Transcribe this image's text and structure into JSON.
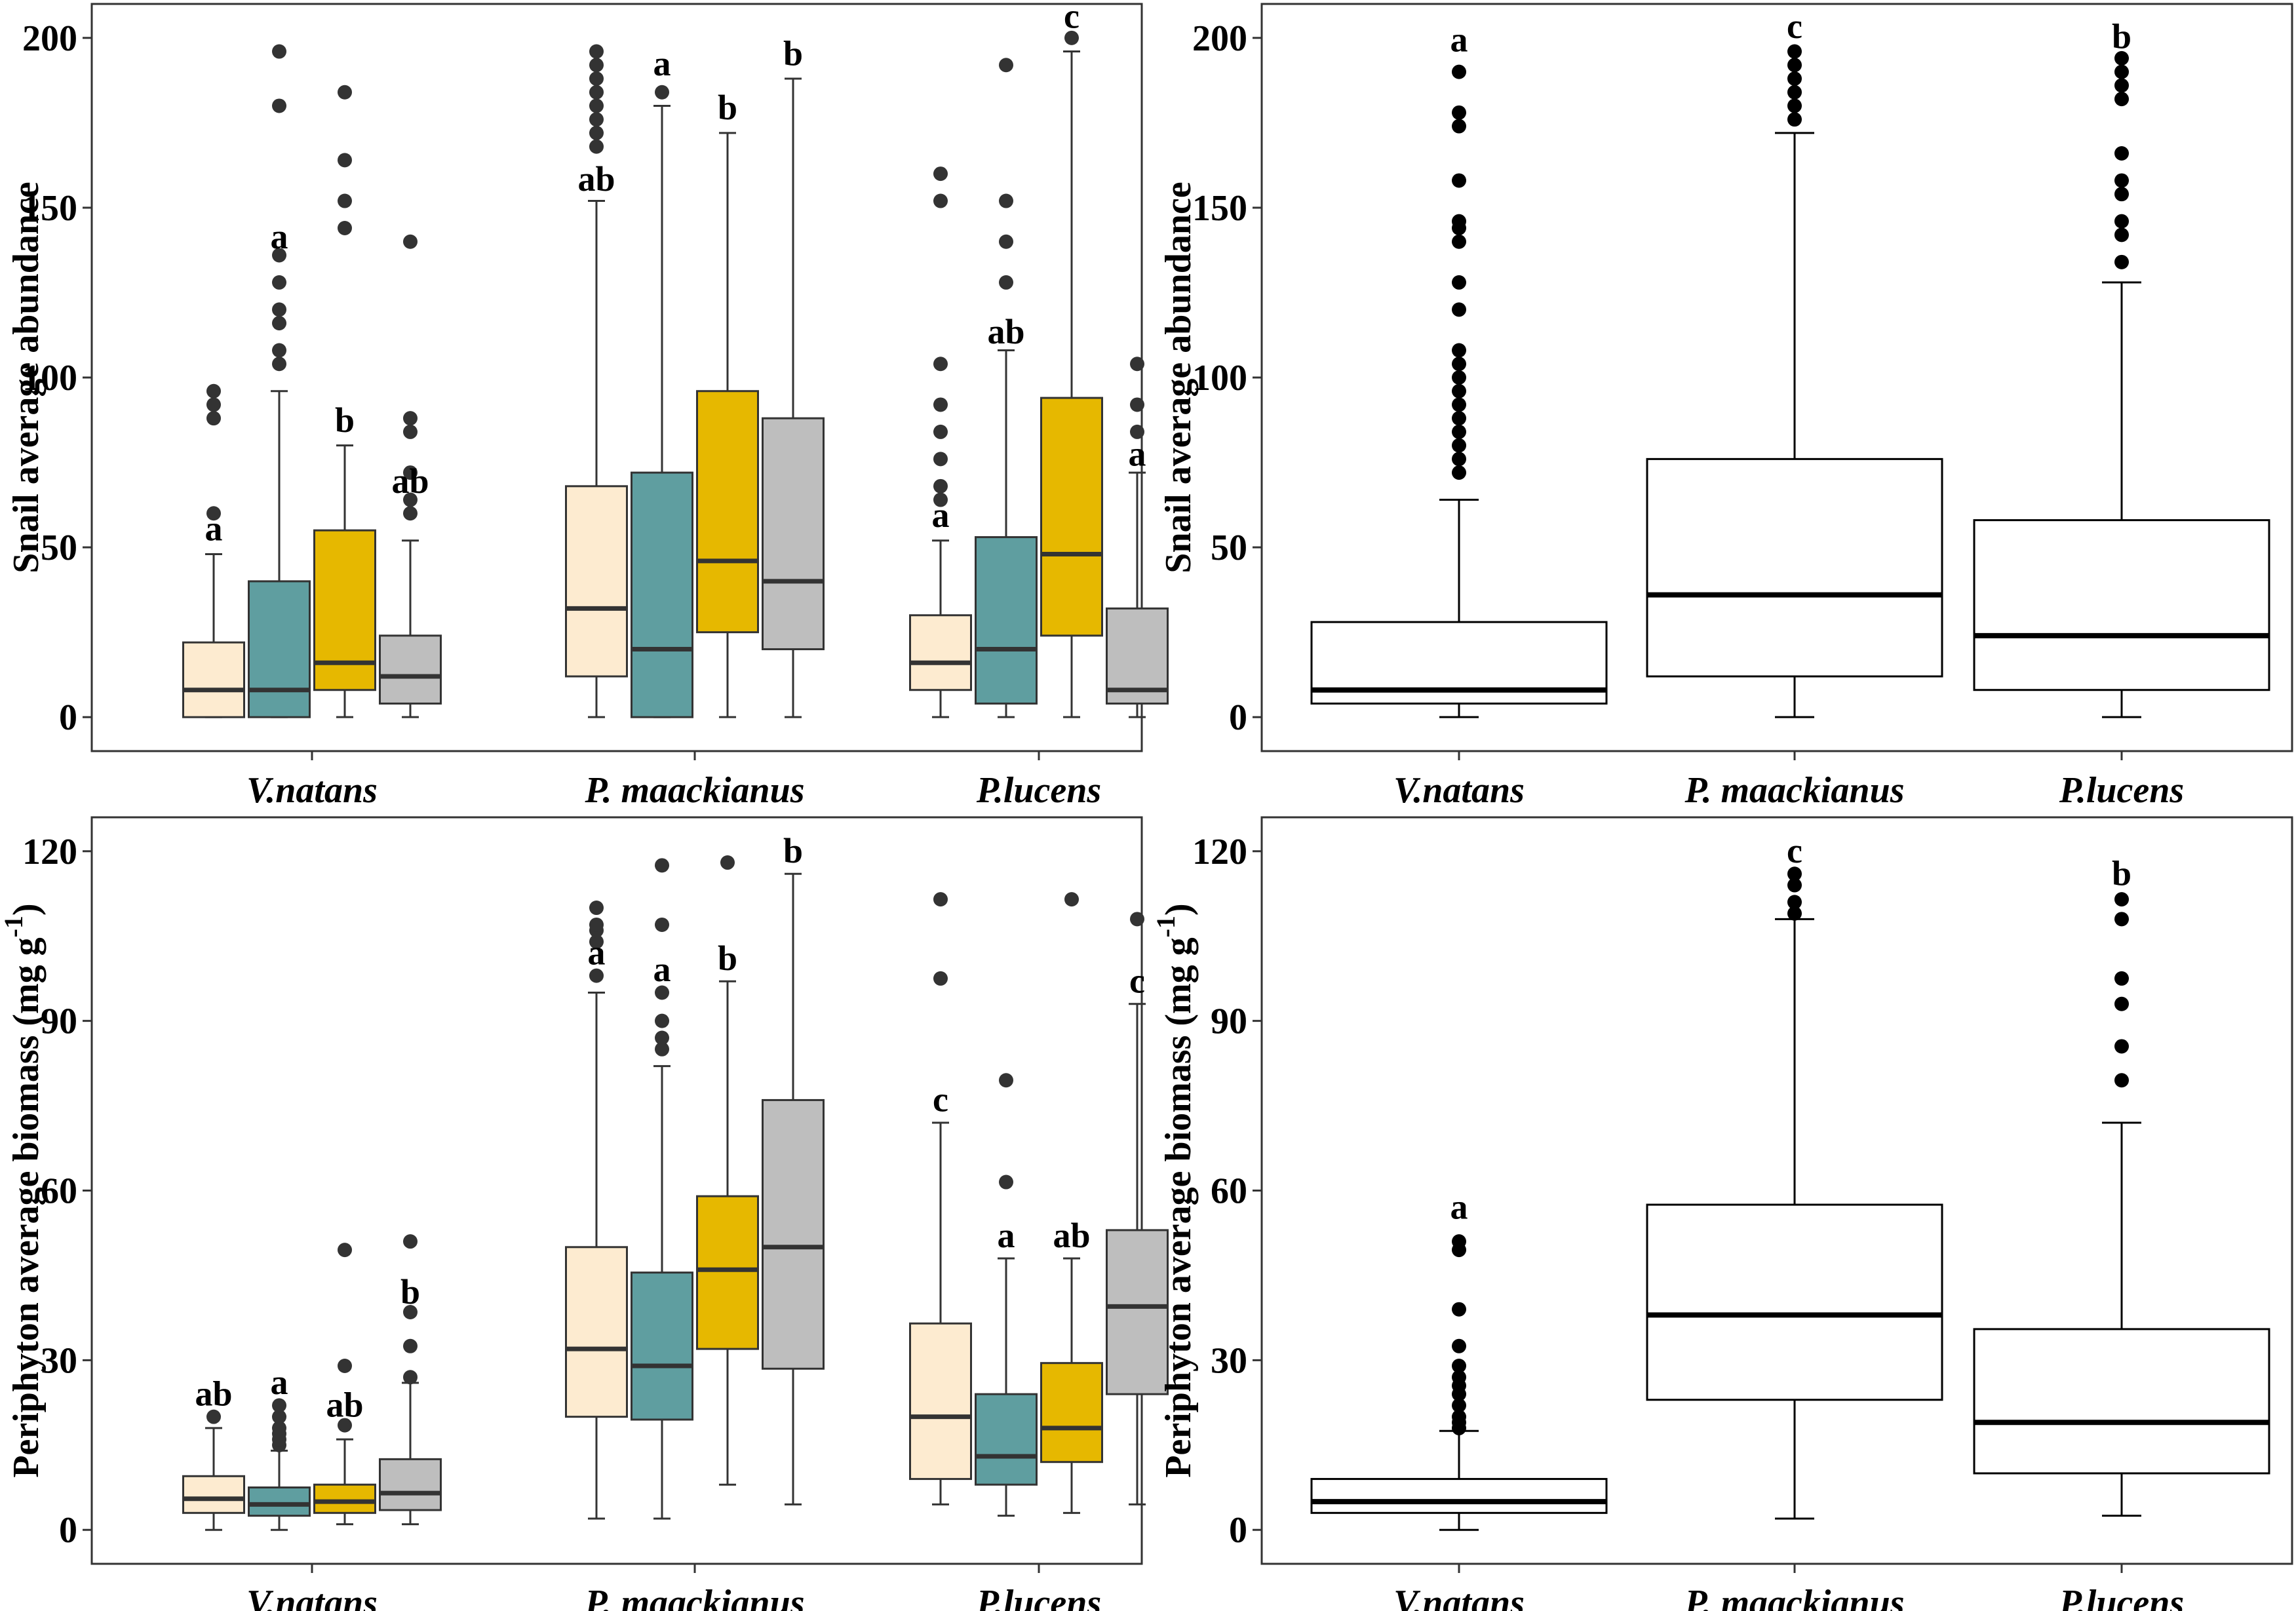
{
  "chart_data": [
    {
      "type": "box",
      "ylabel": "Snail average abundance",
      "ylim": [
        -10,
        210
      ],
      "yticks": [
        0,
        50,
        100,
        150,
        200
      ],
      "categories": [
        "V.natans",
        "P. maackianus",
        "P.lucens"
      ],
      "series_colors": [
        "#fdebd0",
        "#5f9ea0",
        "#e6b800",
        "#bebebe"
      ],
      "boxes": [
        {
          "category": "V.natans",
          "fill": "#fdebd0",
          "min": 0,
          "q1": 0,
          "median": 8,
          "q3": 22,
          "max": 48,
          "outliers": [
            60,
            88,
            92,
            96
          ],
          "letter": "a",
          "letter_y": 52
        },
        {
          "category": "V.natans",
          "fill": "#5f9ea0",
          "min": 0,
          "q1": 0,
          "median": 8,
          "q3": 40,
          "max": 96,
          "outliers": [
            104,
            108,
            116,
            120,
            128,
            136,
            180,
            196
          ],
          "letter": "a",
          "letter_y": 138
        },
        {
          "category": "V.natans",
          "fill": "#e6b800",
          "min": 0,
          "q1": 8,
          "median": 16,
          "q3": 55,
          "max": 80,
          "outliers": [
            144,
            152,
            164,
            184
          ],
          "letter": "b",
          "letter_y": 84
        },
        {
          "category": "V.natans",
          "fill": "#bebebe",
          "min": 0,
          "q1": 4,
          "median": 12,
          "q3": 24,
          "max": 52,
          "outliers": [
            60,
            64,
            72,
            84,
            88,
            140
          ],
          "letter": "ab",
          "letter_y": 66
        },
        {
          "category": "P. maackianus",
          "fill": "#fdebd0",
          "min": 0,
          "q1": 12,
          "median": 32,
          "q3": 68,
          "max": 152,
          "outliers": [
            168,
            172,
            176,
            180,
            184,
            188,
            192,
            196
          ],
          "letter": "ab",
          "letter_y": 155
        },
        {
          "category": "P. maackianus",
          "fill": "#5f9ea0",
          "min": 0,
          "q1": 0,
          "median": 20,
          "q3": 72,
          "max": 180,
          "outliers": [
            184
          ],
          "letter": "a",
          "letter_y": 189
        },
        {
          "category": "P. maackianus",
          "fill": "#e6b800",
          "min": 0,
          "q1": 25,
          "median": 46,
          "q3": 96,
          "max": 172,
          "outliers": [],
          "letter": "b",
          "letter_y": 176
        },
        {
          "category": "P. maackianus",
          "fill": "#bebebe",
          "min": 0,
          "q1": 20,
          "median": 40,
          "q3": 88,
          "max": 188,
          "outliers": [],
          "letter": "b",
          "letter_y": 192
        },
        {
          "category": "P.lucens",
          "fill": "#fdebd0",
          "min": 0,
          "q1": 8,
          "median": 16,
          "q3": 30,
          "max": 52,
          "outliers": [
            64,
            68,
            76,
            84,
            92,
            104,
            152,
            160
          ],
          "letter": "a",
          "letter_y": 56
        },
        {
          "category": "P.lucens",
          "fill": "#5f9ea0",
          "min": 0,
          "q1": 4,
          "median": 20,
          "q3": 53,
          "max": 108,
          "outliers": [
            128,
            140,
            152,
            192
          ],
          "letter": "ab",
          "letter_y": 110
        },
        {
          "category": "P.lucens",
          "fill": "#e6b800",
          "min": 0,
          "q1": 24,
          "median": 48,
          "q3": 94,
          "max": 196,
          "outliers": [
            200
          ],
          "letter": "c",
          "letter_y": 203
        },
        {
          "category": "P.lucens",
          "fill": "#bebebe",
          "min": 0,
          "q1": 4,
          "median": 8,
          "q3": 32,
          "max": 72,
          "outliers": [
            84,
            92,
            104
          ],
          "letter": "a",
          "letter_y": 74
        }
      ]
    },
    {
      "type": "box",
      "ylabel": "Snail average abundance",
      "ylim": [
        -10,
        210
      ],
      "yticks": [
        0,
        50,
        100,
        150,
        200
      ],
      "categories": [
        "V.natans",
        "P. maackianus",
        "P.lucens"
      ],
      "boxes": [
        {
          "category": "V.natans",
          "fill": "#ffffff",
          "min": 0,
          "q1": 4,
          "median": 8,
          "q3": 28,
          "max": 64,
          "outliers": [
            72,
            76,
            80,
            84,
            88,
            92,
            96,
            100,
            104,
            108,
            120,
            128,
            140,
            144,
            146,
            158,
            174,
            178,
            190
          ],
          "letter": "a",
          "letter_y": 196
        },
        {
          "category": "P. maackianus",
          "fill": "#ffffff",
          "min": 0,
          "q1": 12,
          "median": 36,
          "q3": 76,
          "max": 172,
          "outliers": [
            176,
            180,
            184,
            188,
            192,
            196
          ],
          "letter": "c",
          "letter_y": 200
        },
        {
          "category": "P.lucens",
          "fill": "#ffffff",
          "min": 0,
          "q1": 8,
          "median": 24,
          "q3": 58,
          "max": 128,
          "outliers": [
            134,
            142,
            146,
            154,
            158,
            166,
            182,
            186,
            190,
            194
          ],
          "letter": "b",
          "letter_y": 197
        }
      ]
    },
    {
      "type": "box",
      "ylabel": "Periphyton average biomass (mg g-1)",
      "ylabel_main": "Periphyton average biomass (mg g",
      "ylabel_sup": "-1",
      "ylabel_close": ")",
      "ylim": [
        -6,
        126
      ],
      "yticks": [
        0,
        30,
        60,
        90,
        120
      ],
      "categories": [
        "V.natans",
        "P. maackianus",
        "P.lucens"
      ],
      "boxes": [
        {
          "category": "V.natans",
          "fill": "#fdebd0",
          "min": 0,
          "q1": 3,
          "median": 5.5,
          "q3": 9.5,
          "max": 18,
          "outliers": [
            20
          ],
          "letter": "ab",
          "letter_y": 22
        },
        {
          "category": "V.natans",
          "fill": "#5f9ea0",
          "min": 0,
          "q1": 2.5,
          "median": 4.5,
          "q3": 7.5,
          "max": 14,
          "outliers": [
            15,
            16,
            17,
            18,
            20,
            22
          ],
          "letter": "a",
          "letter_y": 24
        },
        {
          "category": "V.natans",
          "fill": "#e6b800",
          "min": 1,
          "q1": 3,
          "median": 5,
          "q3": 8,
          "max": 16,
          "outliers": [
            18.5,
            29,
            49.5
          ],
          "letter": "ab",
          "letter_y": 20
        },
        {
          "category": "V.natans",
          "fill": "#bebebe",
          "min": 1,
          "q1": 3.5,
          "median": 6.5,
          "q3": 12.5,
          "max": 26,
          "outliers": [
            27,
            32.5,
            38.5,
            51
          ],
          "letter": "b",
          "letter_y": 40
        },
        {
          "category": "P. maackianus",
          "fill": "#fdebd0",
          "min": 2,
          "q1": 20,
          "median": 32,
          "q3": 50,
          "max": 95,
          "outliers": [
            98,
            104,
            106,
            107,
            110
          ],
          "letter": "a",
          "letter_y": 100
        },
        {
          "category": "P. maackianus",
          "fill": "#5f9ea0",
          "min": 2,
          "q1": 19.5,
          "median": 29,
          "q3": 45.5,
          "max": 82,
          "outliers": [
            85,
            87,
            90,
            95,
            107,
            117.5
          ],
          "letter": "a",
          "letter_y": 97
        },
        {
          "category": "P. maackianus",
          "fill": "#e6b800",
          "min": 8,
          "q1": 32,
          "median": 46,
          "q3": 59,
          "max": 97,
          "outliers": [
            118
          ],
          "letter": "b",
          "letter_y": 99
        },
        {
          "category": "P. maackianus",
          "fill": "#bebebe",
          "min": 4.5,
          "q1": 28.5,
          "median": 50,
          "q3": 76,
          "max": 116,
          "outliers": [],
          "letter": "b",
          "letter_y": 118
        },
        {
          "category": "P.lucens",
          "fill": "#fdebd0",
          "min": 4.5,
          "q1": 9,
          "median": 20,
          "q3": 36.5,
          "max": 72,
          "outliers": [
            97.5,
            111.5
          ],
          "letter": "c",
          "letter_y": 74
        },
        {
          "category": "P.lucens",
          "fill": "#5f9ea0",
          "min": 2.5,
          "q1": 8,
          "median": 13,
          "q3": 24,
          "max": 48,
          "outliers": [
            61.5,
            79.5
          ],
          "letter": "a",
          "letter_y": 50
        },
        {
          "category": "P.lucens",
          "fill": "#e6b800",
          "min": 3,
          "q1": 12,
          "median": 18,
          "q3": 29.5,
          "max": 48,
          "outliers": [
            111.5
          ],
          "letter": "ab",
          "letter_y": 50
        },
        {
          "category": "P.lucens",
          "fill": "#bebebe",
          "min": 4.5,
          "q1": 24,
          "median": 39.5,
          "q3": 53,
          "max": 93,
          "outliers": [
            108
          ],
          "letter": "c",
          "letter_y": 95
        }
      ]
    },
    {
      "type": "box",
      "ylabel": "Periphyton average biomass (mg g-1)",
      "ylabel_main": "Periphyton average biomass (mg g",
      "ylabel_sup": "-1",
      "ylabel_close": ")",
      "ylim": [
        -6,
        126
      ],
      "yticks": [
        0,
        30,
        60,
        90,
        120
      ],
      "categories": [
        "V.natans",
        "P. maackianus",
        "P.lucens"
      ],
      "boxes": [
        {
          "category": "V.natans",
          "fill": "#ffffff",
          "min": 0,
          "q1": 3,
          "median": 5,
          "q3": 9,
          "max": 17.5,
          "outliers": [
            18,
            19,
            20,
            22,
            24,
            25.5,
            27,
            29,
            32.5,
            39,
            49.5,
            51
          ],
          "letter": "a",
          "letter_y": 55
        },
        {
          "category": "P. maackianus",
          "fill": "#ffffff",
          "min": 2,
          "q1": 23,
          "median": 38,
          "q3": 57.5,
          "max": 108,
          "outliers": [
            109,
            111,
            114,
            116
          ],
          "letter": "c",
          "letter_y": 118
        },
        {
          "category": "P.lucens",
          "fill": "#ffffff",
          "min": 2.5,
          "q1": 10,
          "median": 19,
          "q3": 35.5,
          "max": 72,
          "outliers": [
            79.5,
            85.5,
            93,
            97.5,
            108,
            111.5
          ],
          "letter": "b",
          "letter_y": 114
        }
      ]
    }
  ]
}
